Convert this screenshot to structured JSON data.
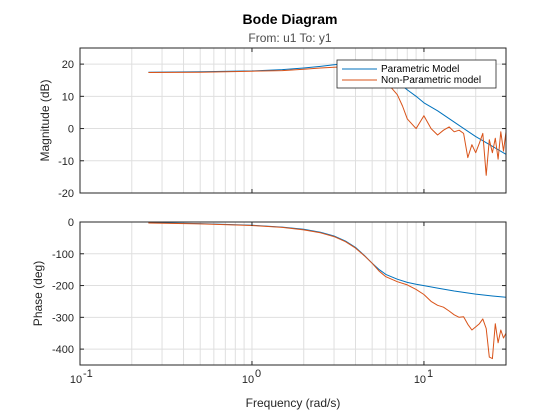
{
  "chart_data": {
    "type": "line",
    "title": "Bode Diagram",
    "subtitle": "From: u1  To: y1",
    "xlabel": "Frequency (rad/s)",
    "xscale": "log",
    "xlim": [
      0.1,
      30
    ],
    "xticks": [
      0.1,
      1,
      10
    ],
    "xtick_labels": [
      {
        "base": "10",
        "exp": "-1"
      },
      {
        "base": "10",
        "exp": "0"
      },
      {
        "base": "10",
        "exp": "1"
      }
    ],
    "grid": true,
    "legend_placement": "top-right",
    "colors": {
      "parametric": "#0072bd",
      "nonparametric": "#d95319"
    },
    "panels": [
      {
        "name": "magnitude",
        "ylabel": "Magnitude (dB)",
        "ylim": [
          -20,
          25
        ],
        "yticks": [
          -20,
          -10,
          0,
          10,
          20
        ],
        "ytick_labels": [
          "-20",
          "-10",
          "0",
          "10",
          "20"
        ],
        "series": [
          {
            "name": "Parametric Model",
            "x": [
              0.25,
              0.5,
              1,
              1.5,
              2,
              2.5,
              3,
              3.5,
              4,
              4.5,
              5,
              5.5,
              6,
              7,
              8,
              9,
              10,
              12,
              15,
              20,
              25,
              30
            ],
            "y": [
              17.5,
              17.6,
              17.9,
              18.3,
              18.8,
              19.3,
              19.8,
              20.1,
              20.2,
              20.0,
              19.3,
              18.3,
              17.2,
              14.5,
              12.0,
              10.0,
              8.0,
              5.5,
              2.0,
              -2.5,
              -5.5,
              -8.0
            ]
          },
          {
            "name": "Non-Parametric model",
            "x": [
              0.25,
              0.5,
              1,
              1.5,
              2,
              2.5,
              3,
              3.5,
              4,
              4.5,
              5,
              5.5,
              6,
              6.5,
              7,
              7.5,
              8,
              9,
              10,
              11,
              12,
              13,
              14,
              15,
              16,
              17,
              18,
              19,
              20,
              21,
              22,
              23,
              24,
              25,
              26,
              27,
              28,
              29,
              30
            ],
            "y": [
              17.4,
              17.5,
              17.8,
              18.0,
              18.4,
              18.8,
              19.0,
              19.2,
              19.1,
              18.5,
              17.5,
              15.5,
              13.5,
              12.5,
              10.5,
              7.0,
              3.0,
              0.0,
              4.0,
              0.0,
              -2.0,
              -0.5,
              0.5,
              -1.0,
              -0.5,
              -1.5,
              -9.0,
              -5.0,
              -7.5,
              -4.5,
              -1.5,
              -14.5,
              -3.5,
              -7.5,
              -3.0,
              -9.5,
              -1.0,
              -7.0,
              -1.0
            ]
          }
        ]
      },
      {
        "name": "phase",
        "ylabel": "Phase (deg)",
        "ylim": [
          -450,
          0
        ],
        "yticks": [
          -400,
          -300,
          -200,
          -100,
          0
        ],
        "ytick_labels": [
          "-400",
          "-300",
          "-200",
          "-100",
          "0"
        ],
        "series": [
          {
            "name": "Parametric Model",
            "x": [
              0.25,
              0.5,
              1,
              1.5,
              2,
              2.5,
              3,
              3.5,
              4,
              4.5,
              5,
              5.5,
              6,
              7,
              8,
              9,
              10,
              12,
              15,
              20,
              25,
              30
            ],
            "y": [
              -2,
              -5,
              -10,
              -16,
              -23,
              -32,
              -44,
              -60,
              -80,
              -105,
              -130,
              -150,
              -165,
              -180,
              -190,
              -196,
              -200,
              -208,
              -217,
              -227,
              -233,
              -237
            ]
          },
          {
            "name": "Non-Parametric model",
            "x": [
              0.25,
              0.5,
              1,
              1.5,
              2,
              2.5,
              3,
              3.5,
              4,
              4.5,
              5,
              5.5,
              6,
              7,
              8,
              9,
              10,
              11,
              12,
              13,
              14,
              15,
              16,
              17,
              18,
              19,
              20,
              21,
              22,
              23,
              24,
              25,
              26,
              27,
              28,
              29,
              30
            ],
            "y": [
              -3,
              -6,
              -11,
              -17,
              -25,
              -34,
              -46,
              -62,
              -82,
              -106,
              -130,
              -155,
              -172,
              -188,
              -198,
              -212,
              -228,
              -250,
              -262,
              -268,
              -280,
              -292,
              -300,
              -298,
              -322,
              -340,
              -330,
              -320,
              -305,
              -335,
              -425,
              -430,
              -320,
              -380,
              -340,
              -365,
              -350
            ]
          }
        ]
      }
    ]
  }
}
